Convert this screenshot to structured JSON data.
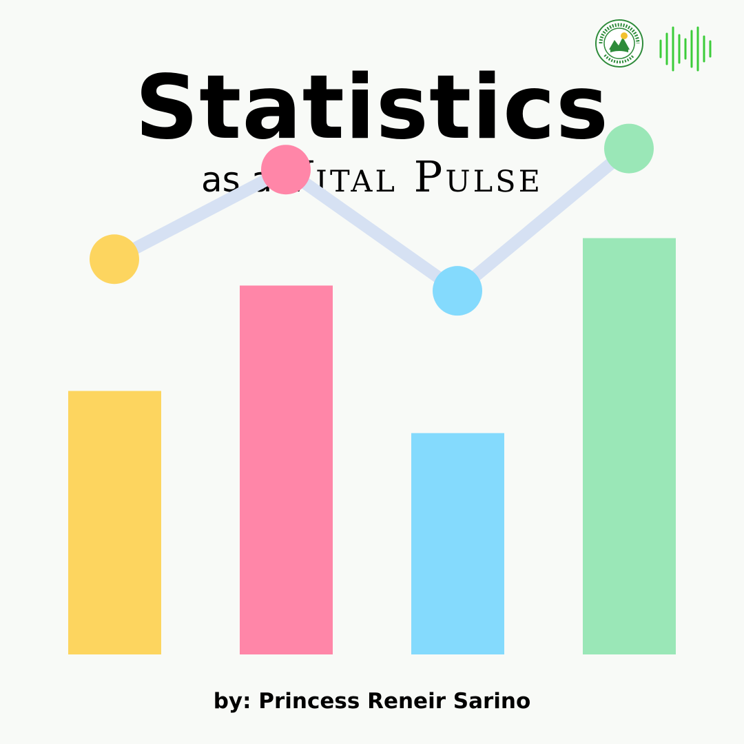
{
  "title": "Statistics",
  "subtitle": {
    "small": "as a",
    "caps": "Vital Pulse"
  },
  "byline": "by: Princess Reneir Sarino",
  "logo": {
    "name": "school-seal",
    "text": "ZAMBOANGA DEL NORTE NATIONAL HIGH SCHOOL",
    "city": "DIPOLOG CITY"
  },
  "icon": "sound-wave-icon",
  "colors": {
    "background": "#f8faf7",
    "yellow": "#fdd55f",
    "pink": "#ff86a8",
    "blue": "#84dafd",
    "green": "#9ae7b7",
    "line": "#d6e1f3",
    "pulse": "#3ccc3a"
  },
  "chart_data": {
    "type": "bar",
    "categories": [
      "",
      "",
      "",
      ""
    ],
    "values": [
      5,
      7,
      4.2,
      7.9
    ],
    "line_values": [
      7.5,
      9.2,
      6.9,
      9.6
    ],
    "ylim": [
      0,
      10
    ],
    "grid": false
  }
}
